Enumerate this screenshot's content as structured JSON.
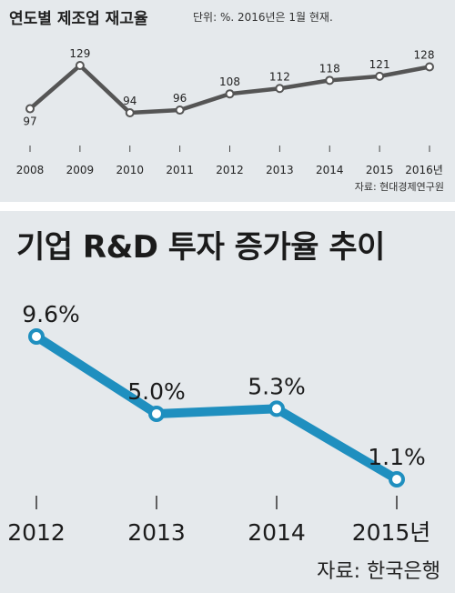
{
  "chart_data": [
    {
      "type": "line",
      "title": "연도별 제조업 재고율",
      "subtitle": "단위: %. 2016년은 1월 현재.",
      "source": "자료: 현대경제연구원",
      "categories": [
        "2008",
        "2009",
        "2010",
        "2011",
        "2012",
        "2013",
        "2014",
        "2015",
        "2016년"
      ],
      "values": [
        97,
        129,
        94,
        96,
        108,
        112,
        118,
        121,
        128
      ],
      "data_labels": [
        "97",
        "129",
        "94",
        "96",
        "108",
        "112",
        "118",
        "121",
        "128"
      ],
      "line_color": "#555555",
      "ylim": [
        85,
        135
      ],
      "grid": false
    },
    {
      "type": "line",
      "title": "기업 R&D 투자 증가율 추이",
      "source": "자료: 한국은행",
      "categories": [
        "2012",
        "2013",
        "2014",
        "2015년"
      ],
      "values": [
        9.6,
        5.0,
        5.3,
        1.1
      ],
      "data_labels": [
        "9.6%",
        "5.0%",
        "5.3%",
        "1.1%"
      ],
      "line_color": "#1f8fbf",
      "ylim": [
        0,
        11
      ],
      "grid": false
    }
  ]
}
